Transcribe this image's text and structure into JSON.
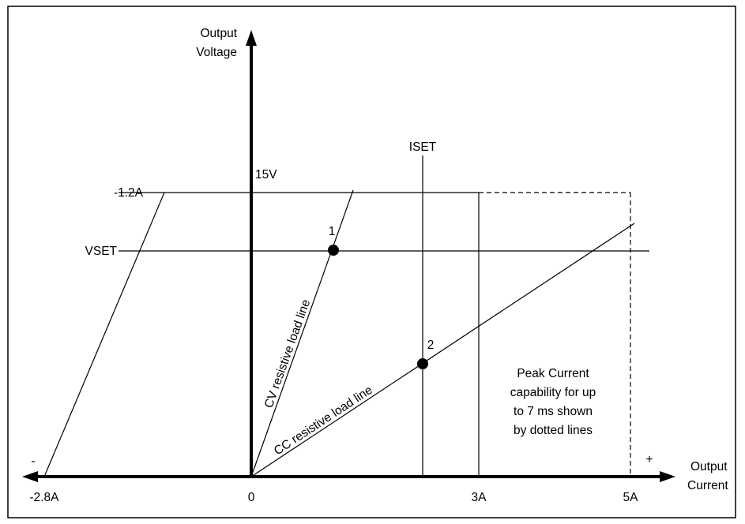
{
  "diagram": {
    "y_axis_label_line1": "Output",
    "y_axis_label_line2": "Voltage",
    "x_axis_label_line1": "Output",
    "x_axis_label_line2": "Current",
    "minus_sign": "-",
    "plus_sign": "+",
    "tick_origin": "0",
    "tick_neg": "-2.8A",
    "tick_3a": "3A",
    "tick_5a": "5A",
    "label_15v": "15V",
    "label_neg12a": "-1.2A",
    "label_vset": "VSET",
    "label_iset": "ISET",
    "label_point1": "1",
    "label_point2": "2",
    "cv_line_label": "CV resistive load line",
    "cc_line_label": "CC resistive load line",
    "note_line1": "Peak Current",
    "note_line2": "capability for up",
    "note_line3": "to 7 ms shown",
    "note_line4": "by dotted lines"
  }
}
